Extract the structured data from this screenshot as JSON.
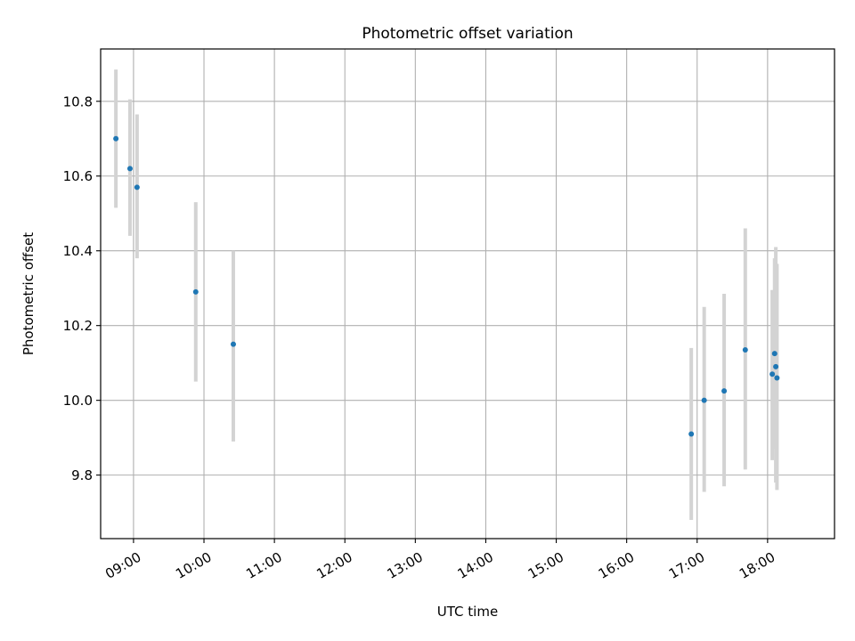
{
  "chart_data": {
    "type": "scatter",
    "title": "Photometric offset variation",
    "xlabel": "UTC time",
    "ylabel": "Photometric offset",
    "x_axis": "time",
    "xlim": [
      "08:32",
      "18:57"
    ],
    "ylim": [
      9.63,
      10.94
    ],
    "grid": true,
    "x_ticks": [
      "09:00",
      "10:00",
      "11:00",
      "12:00",
      "13:00",
      "14:00",
      "15:00",
      "16:00",
      "17:00",
      "18:00"
    ],
    "y_ticks": [
      "9.8",
      "10.0",
      "10.2",
      "10.4",
      "10.6",
      "10.8"
    ],
    "series": [
      {
        "marker_color": "#1f77b4",
        "errorbar_color": "#d3d3d3",
        "points": [
          {
            "x": "08:45",
            "y": 10.7,
            "yerr_low": 10.515,
            "yerr_high": 10.885
          },
          {
            "x": "08:57",
            "y": 10.62,
            "yerr_low": 10.44,
            "yerr_high": 10.805
          },
          {
            "x": "09:03",
            "y": 10.57,
            "yerr_low": 10.38,
            "yerr_high": 10.765
          },
          {
            "x": "09:53",
            "y": 10.29,
            "yerr_low": 10.05,
            "yerr_high": 10.53
          },
          {
            "x": "10:25",
            "y": 10.15,
            "yerr_low": 9.89,
            "yerr_high": 10.4
          },
          {
            "x": "16:55",
            "y": 9.91,
            "yerr_low": 9.68,
            "yerr_high": 10.14
          },
          {
            "x": "17:06",
            "y": 10.0,
            "yerr_low": 9.755,
            "yerr_high": 10.25
          },
          {
            "x": "17:23",
            "y": 10.025,
            "yerr_low": 9.77,
            "yerr_high": 10.285
          },
          {
            "x": "17:41",
            "y": 10.135,
            "yerr_low": 9.815,
            "yerr_high": 10.46
          },
          {
            "x": "18:04",
            "y": 10.07,
            "yerr_low": 9.84,
            "yerr_high": 10.295
          },
          {
            "x": "18:06",
            "y": 10.125,
            "yerr_low": 9.87,
            "yerr_high": 10.38
          },
          {
            "x": "18:07",
            "y": 10.09,
            "yerr_low": 9.78,
            "yerr_high": 10.41
          },
          {
            "x": "18:08",
            "y": 10.06,
            "yerr_low": 9.76,
            "yerr_high": 10.365
          }
        ]
      }
    ]
  }
}
